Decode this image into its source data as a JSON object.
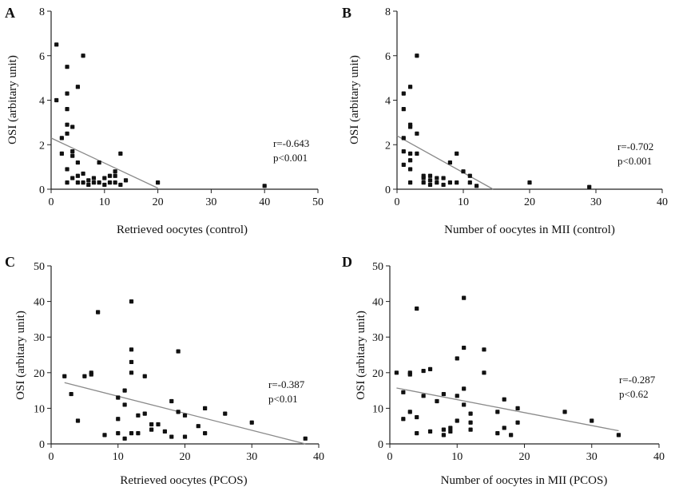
{
  "chart_data": [
    {
      "panel": "A",
      "type": "scatter",
      "xlabel": "Retrieved oocytes (control)",
      "ylabel": "OSI (arbitary unit)",
      "xlim": [
        0,
        50
      ],
      "ylim": [
        0,
        8
      ],
      "xticks": [
        0,
        10,
        20,
        30,
        40,
        50
      ],
      "yticks": [
        0,
        2,
        4,
        6,
        8
      ],
      "stats": [
        "r=-0.643",
        "p<0.001"
      ],
      "regression": {
        "x": [
          0,
          20
        ],
        "y": [
          2.3,
          0.05
        ]
      },
      "points": [
        [
          1,
          6.5
        ],
        [
          1,
          4.0
        ],
        [
          2,
          2.3
        ],
        [
          2,
          1.6
        ],
        [
          3,
          5.5
        ],
        [
          3,
          4.3
        ],
        [
          3,
          3.6
        ],
        [
          3,
          2.9
        ],
        [
          3,
          2.5
        ],
        [
          3,
          0.9
        ],
        [
          3,
          0.3
        ],
        [
          4,
          2.8
        ],
        [
          4,
          1.7
        ],
        [
          4,
          1.5
        ],
        [
          4,
          0.5
        ],
        [
          5,
          4.6
        ],
        [
          5,
          1.2
        ],
        [
          5,
          0.6
        ],
        [
          5,
          0.3
        ],
        [
          6,
          6.0
        ],
        [
          6,
          0.7
        ],
        [
          6,
          0.3
        ],
        [
          7,
          0.4
        ],
        [
          7,
          0.2
        ],
        [
          8,
          0.5
        ],
        [
          8,
          0.3
        ],
        [
          9,
          1.2
        ],
        [
          9,
          0.3
        ],
        [
          10,
          0.5
        ],
        [
          10,
          0.2
        ],
        [
          11,
          0.6
        ],
        [
          11,
          0.3
        ],
        [
          12,
          0.8
        ],
        [
          12,
          0.6
        ],
        [
          12,
          0.3
        ],
        [
          13,
          1.6
        ],
        [
          13,
          0.2
        ],
        [
          14,
          0.4
        ],
        [
          20,
          0.3
        ],
        [
          40,
          0.15
        ]
      ]
    },
    {
      "panel": "B",
      "type": "scatter",
      "xlabel": "Number of oocytes in MII (control)",
      "ylabel": "OSI (arbitary unit)",
      "xlim": [
        0,
        40
      ],
      "ylim": [
        0,
        8
      ],
      "xticks": [
        0,
        10,
        20,
        30,
        40
      ],
      "yticks": [
        0,
        2,
        4,
        6,
        8
      ],
      "stats": [
        "r=-0.702",
        "p<0.001"
      ],
      "regression": {
        "x": [
          0,
          14.5
        ],
        "y": [
          2.4,
          0.0
        ]
      },
      "points": [
        [
          1,
          4.3
        ],
        [
          1,
          3.6
        ],
        [
          1,
          2.3
        ],
        [
          1,
          1.7
        ],
        [
          1,
          1.1
        ],
        [
          2,
          4.6
        ],
        [
          2,
          2.9
        ],
        [
          2,
          2.8
        ],
        [
          2,
          1.6
        ],
        [
          2,
          1.3
        ],
        [
          2,
          0.9
        ],
        [
          2,
          0.3
        ],
        [
          3,
          6.0
        ],
        [
          3,
          2.5
        ],
        [
          3,
          1.6
        ],
        [
          4,
          0.6
        ],
        [
          4,
          0.5
        ],
        [
          4,
          0.3
        ],
        [
          5,
          0.6
        ],
        [
          5,
          0.4
        ],
        [
          5,
          0.2
        ],
        [
          6,
          0.5
        ],
        [
          6,
          0.3
        ],
        [
          7,
          0.5
        ],
        [
          7,
          0.2
        ],
        [
          8,
          1.2
        ],
        [
          8,
          0.3
        ],
        [
          9,
          1.6
        ],
        [
          9,
          0.3
        ],
        [
          10,
          0.8
        ],
        [
          11,
          0.6
        ],
        [
          11,
          0.3
        ],
        [
          12,
          0.15
        ],
        [
          20,
          0.3
        ],
        [
          29,
          0.1
        ]
      ]
    },
    {
      "panel": "C",
      "type": "scatter",
      "xlabel": "Retrieved oocytes (PCOS)",
      "ylabel": "OSI (arbitary unit)",
      "xlim": [
        0,
        40
      ],
      "ylim": [
        0,
        50
      ],
      "xticks": [
        0,
        10,
        20,
        30,
        40
      ],
      "yticks": [
        0,
        10,
        20,
        30,
        40,
        50
      ],
      "stats": [
        "r=-0.387",
        "p<0.01"
      ],
      "regression": {
        "x": [
          2,
          38
        ],
        "y": [
          17.2,
          0.0
        ]
      },
      "points": [
        [
          2,
          19
        ],
        [
          3,
          14
        ],
        [
          4,
          6.5
        ],
        [
          5,
          19
        ],
        [
          6,
          20
        ],
        [
          6,
          19.5
        ],
        [
          7,
          37
        ],
        [
          8,
          2.5
        ],
        [
          10,
          7
        ],
        [
          10,
          3
        ],
        [
          10,
          13
        ],
        [
          11,
          15
        ],
        [
          11,
          11
        ],
        [
          11,
          1.5
        ],
        [
          12,
          40
        ],
        [
          12,
          26.5
        ],
        [
          12,
          23
        ],
        [
          12,
          20
        ],
        [
          12,
          3
        ],
        [
          13,
          8
        ],
        [
          13,
          3
        ],
        [
          14,
          19
        ],
        [
          14,
          8.5
        ],
        [
          15,
          5.5
        ],
        [
          15,
          4
        ],
        [
          16,
          5.5
        ],
        [
          17,
          3.5
        ],
        [
          18,
          12
        ],
        [
          18,
          2
        ],
        [
          19,
          26
        ],
        [
          19,
          9
        ],
        [
          20,
          8
        ],
        [
          20,
          2
        ],
        [
          22,
          5
        ],
        [
          23,
          10
        ],
        [
          23,
          3
        ],
        [
          26,
          8.5
        ],
        [
          30,
          6
        ],
        [
          38,
          1.5
        ]
      ]
    },
    {
      "panel": "D",
      "type": "scatter",
      "xlabel": "Number of oocytes in MII (PCOS)",
      "ylabel": "OSI (arbitary unit)",
      "xlim": [
        0,
        40
      ],
      "ylim": [
        0,
        50
      ],
      "xticks": [
        0,
        10,
        20,
        30,
        40
      ],
      "yticks": [
        0,
        10,
        20,
        30,
        40,
        50
      ],
      "stats": [
        "r=-0.287",
        "p<0.62"
      ],
      "regression": {
        "x": [
          1,
          34
        ],
        "y": [
          15.7,
          3.7
        ]
      },
      "points": [
        [
          1,
          20
        ],
        [
          2,
          14.5
        ],
        [
          2,
          7
        ],
        [
          3,
          20
        ],
        [
          3,
          19.5
        ],
        [
          3,
          9
        ],
        [
          4,
          38
        ],
        [
          4,
          3
        ],
        [
          4,
          7.5
        ],
        [
          5,
          20.5
        ],
        [
          5,
          13.5
        ],
        [
          6,
          21
        ],
        [
          6,
          3.5
        ],
        [
          7,
          12
        ],
        [
          8,
          14
        ],
        [
          8,
          4
        ],
        [
          8,
          2.5
        ],
        [
          9,
          4.5
        ],
        [
          9,
          3.5
        ],
        [
          10,
          24
        ],
        [
          10,
          13.5
        ],
        [
          10,
          6.5
        ],
        [
          11,
          41
        ],
        [
          11,
          27
        ],
        [
          11,
          15.5
        ],
        [
          11,
          11
        ],
        [
          12,
          8.5
        ],
        [
          12,
          4
        ],
        [
          12,
          6
        ],
        [
          14,
          26.5
        ],
        [
          14,
          20
        ],
        [
          16,
          9
        ],
        [
          16,
          3
        ],
        [
          17,
          12.5
        ],
        [
          17,
          4.5
        ],
        [
          18,
          2.5
        ],
        [
          19,
          10
        ],
        [
          19,
          6
        ],
        [
          26,
          9
        ],
        [
          30,
          6.5
        ],
        [
          34,
          2.5
        ]
      ]
    }
  ]
}
